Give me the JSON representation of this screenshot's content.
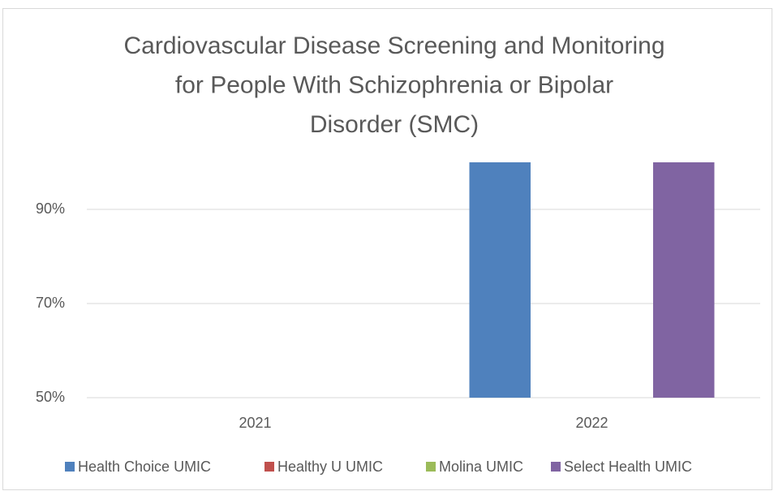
{
  "chart_data": {
    "type": "bar",
    "title": [
      "Cardiovascular Disease Screening and Monitoring",
      "for People With Schizophrenia or Bipolar",
      "Disorder  (SMC)"
    ],
    "categories": [
      "2021",
      "2022"
    ],
    "series": [
      {
        "name": "Health Choice UMIC",
        "color": "#4f81bd",
        "values": [
          null,
          100
        ]
      },
      {
        "name": "Healthy U UMIC",
        "color": "#c0504d",
        "values": [
          null,
          null
        ]
      },
      {
        "name": "Molina UMIC",
        "color": "#9bbb59",
        "values": [
          null,
          null
        ]
      },
      {
        "name": "Select Health UMIC",
        "color": "#8064a2",
        "values": [
          null,
          100
        ]
      }
    ],
    "ylim": [
      50,
      100
    ],
    "yticks": [
      {
        "value": 50,
        "label": "50%"
      },
      {
        "value": 70,
        "label": "70%"
      },
      {
        "value": 90,
        "label": "90%"
      }
    ],
    "grid": true,
    "legend": "bottom"
  }
}
